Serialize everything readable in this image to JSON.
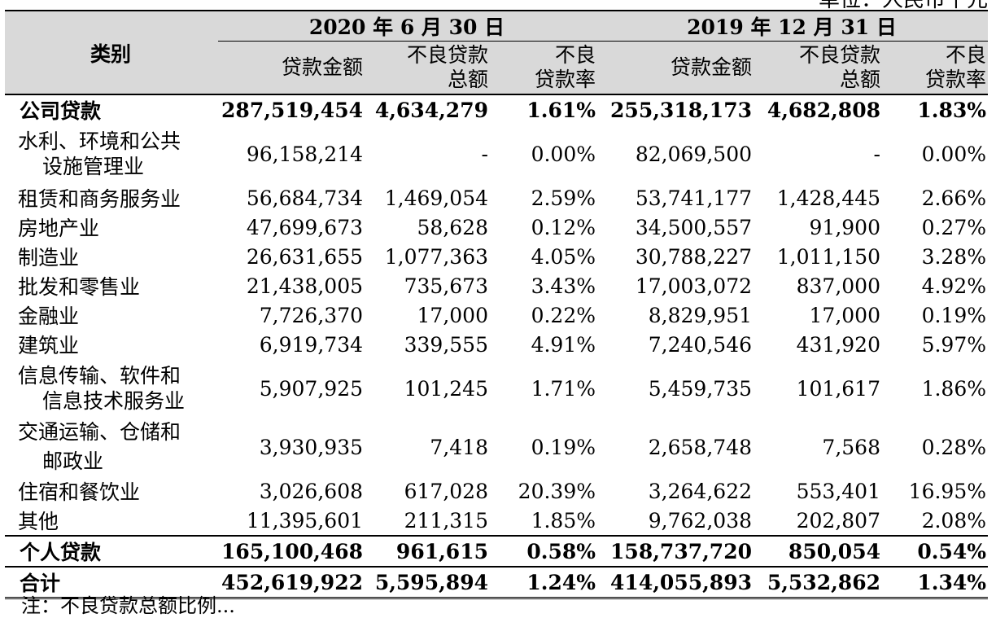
{
  "unit_note": "单位：人民币千元",
  "header": {
    "category": "类别",
    "period1": "2020 年 6 月 30 日",
    "period2": "2019 年 12 月 31 日",
    "col_loan": "贷款金额",
    "col_npl_line1": "不良贷款",
    "col_npl_line2": "总额",
    "col_rate_line1": "不良",
    "col_rate_line2": "贷款率"
  },
  "corporate": {
    "label": "公司贷款",
    "v": [
      "287,519,454",
      "4,634,279",
      "1.61%",
      "255,318,173",
      "4,682,808",
      "1.83%"
    ]
  },
  "industries": [
    {
      "label1": "水利、环境和公共",
      "label2": "设施管理业",
      "v": [
        "96,158,214",
        "-",
        "0.00%",
        "82,069,500",
        "-",
        "0.00%"
      ]
    },
    {
      "label1": "租赁和商务服务业",
      "label2": "",
      "v": [
        "56,684,734",
        "1,469,054",
        "2.59%",
        "53,741,177",
        "1,428,445",
        "2.66%"
      ]
    },
    {
      "label1": "房地产业",
      "label2": "",
      "v": [
        "47,699,673",
        "58,628",
        "0.12%",
        "34,500,557",
        "91,900",
        "0.27%"
      ]
    },
    {
      "label1": "制造业",
      "label2": "",
      "v": [
        "26,631,655",
        "1,077,363",
        "4.05%",
        "30,788,227",
        "1,011,150",
        "3.28%"
      ]
    },
    {
      "label1": "批发和零售业",
      "label2": "",
      "v": [
        "21,438,005",
        "735,673",
        "3.43%",
        "17,003,072",
        "837,000",
        "4.92%"
      ]
    },
    {
      "label1": "金融业",
      "label2": "",
      "v": [
        "7,726,370",
        "17,000",
        "0.22%",
        "8,829,951",
        "17,000",
        "0.19%"
      ]
    },
    {
      "label1": "建筑业",
      "label2": "",
      "v": [
        "6,919,734",
        "339,555",
        "4.91%",
        "7,240,546",
        "431,920",
        "5.97%"
      ]
    },
    {
      "label1": "信息传输、软件和",
      "label2": "信息技术服务业",
      "v": [
        "5,907,925",
        "101,245",
        "1.71%",
        "5,459,735",
        "101,617",
        "1.86%"
      ]
    },
    {
      "label1": "交通运输、仓储和",
      "label2": "邮政业",
      "v": [
        "3,930,935",
        "7,418",
        "0.19%",
        "2,658,748",
        "7,568",
        "0.28%"
      ]
    },
    {
      "label1": "住宿和餐饮业",
      "label2": "",
      "v": [
        "3,026,608",
        "617,028",
        "20.39%",
        "3,264,622",
        "553,401",
        "16.95%"
      ]
    },
    {
      "label1": "其他",
      "label2": "",
      "v": [
        "11,395,601",
        "211,315",
        "1.85%",
        "9,762,038",
        "202,807",
        "2.08%"
      ]
    }
  ],
  "personal": {
    "label": "个人贷款",
    "v": [
      "165,100,468",
      "961,615",
      "0.58%",
      "158,737,720",
      "850,054",
      "0.54%"
    ]
  },
  "total": {
    "label": "合计",
    "v": [
      "452,619,922",
      "5,595,894",
      "1.24%",
      "414,055,893",
      "5,532,862",
      "1.34%"
    ]
  },
  "footnote": "注：不良贷款总额比例..."
}
